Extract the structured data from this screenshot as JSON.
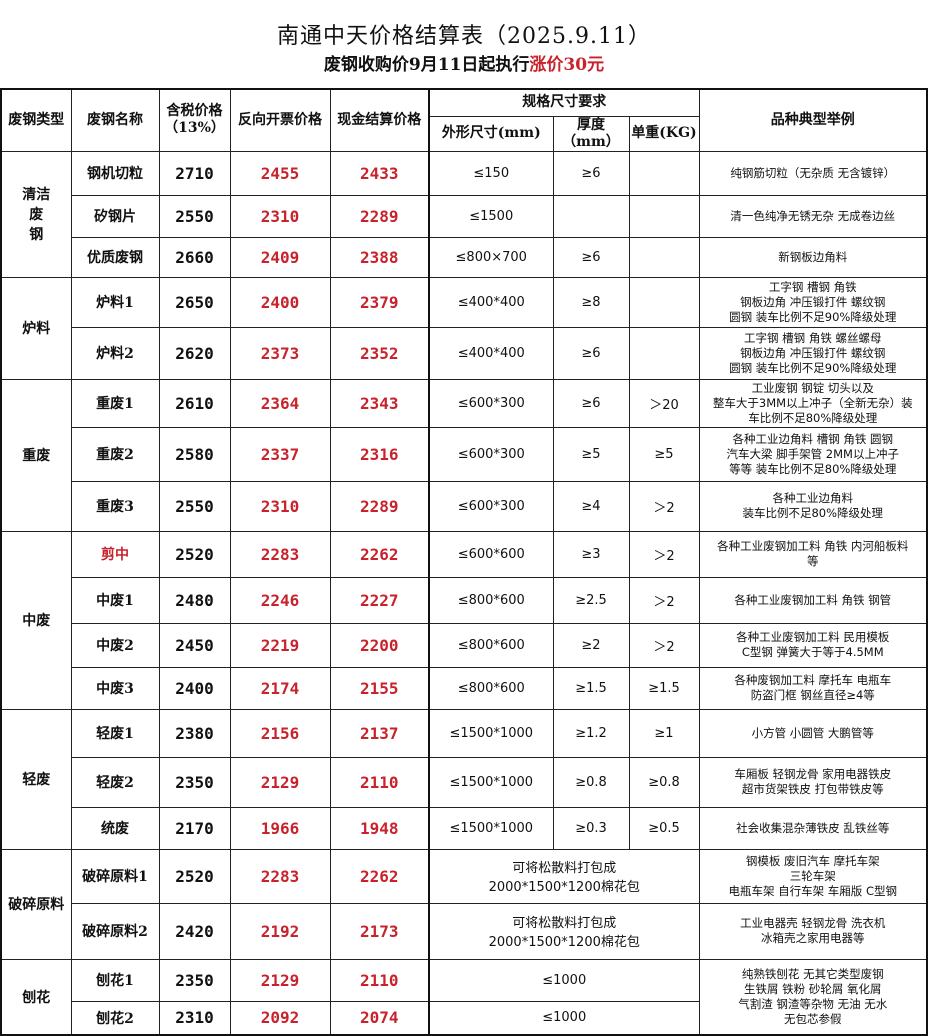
{
  "title": "南通中天价格结算表（2025.9.11）",
  "subtitle_prefix": "废钢收购价9月11日起执行",
  "subtitle_highlight": "涨价30元",
  "subtitle_suffix": "",
  "colors": {
    "accent_red": "#c8232c"
  },
  "headers": {
    "type": "废钢类型",
    "name": "废钢名称",
    "tax_price": "含税价格（13%）",
    "invoice_price": "反向开票价格",
    "cash_price": "现金结算价格",
    "spec": "规格尺寸要求",
    "size": "外形尺寸(mm)",
    "thickness": "厚度（mm）",
    "weight": "单重(KG)",
    "examples": "品种典型举例"
  },
  "groups": [
    {
      "type": "清洁废钢",
      "rows": [
        {
          "name": "钢机切粒",
          "tax": "2710",
          "invoice": "2455",
          "cash": "2433",
          "size": "≤150",
          "thick": "≥6",
          "weight": "",
          "example": "纯钢筋切粒（无杂质 无含镀锌）"
        },
        {
          "name": "矽钢片",
          "tax": "2550",
          "invoice": "2310",
          "cash": "2289",
          "size": "≤1500",
          "thick": "",
          "weight": "",
          "example": "清一色纯净无锈无杂 无成卷边丝"
        },
        {
          "name": "优质废钢",
          "tax": "2660",
          "invoice": "2409",
          "cash": "2388",
          "size": "≤800×700",
          "thick": "≥6",
          "weight": "",
          "example": "新钢板边角料"
        }
      ]
    },
    {
      "type": "炉料",
      "rows": [
        {
          "name": "炉料1",
          "tax": "2650",
          "invoice": "2400",
          "cash": "2379",
          "size": "≤400*400",
          "thick": "≥8",
          "weight": "",
          "example": "工字钢 槽钢 角铁\n钢板边角 冲压锻打件 螺纹钢\n圆钢 装车比例不足90%降级处理"
        },
        {
          "name": "炉料2",
          "tax": "2620",
          "invoice": "2373",
          "cash": "2352",
          "size": "≤400*400",
          "thick": "≥6",
          "weight": "",
          "example": "工字钢 槽钢 角铁 螺丝螺母\n钢板边角 冲压锻打件 螺纹钢\n圆钢 装车比例不足90%降级处理"
        }
      ]
    },
    {
      "type": "重废",
      "rows": [
        {
          "name": "重废1",
          "tax": "2610",
          "invoice": "2364",
          "cash": "2343",
          "size": "≤600*300",
          "thick": "≥6",
          "weight": "＞20",
          "example": "工业废钢 钢锭 切头以及\n整车大于3MM以上冲子（全新无杂）装\n车比例不足80%降级处理"
        },
        {
          "name": "重废2",
          "tax": "2580",
          "invoice": "2337",
          "cash": "2316",
          "size": "≤600*300",
          "thick": "≥5",
          "weight": "≥5",
          "example": "各种工业边角料 槽钢 角铁 圆钢\n汽车大梁 脚手架管 2MM以上冲子\n等等 装车比例不足80%降级处理"
        },
        {
          "name": "重废3",
          "tax": "2550",
          "invoice": "2310",
          "cash": "2289",
          "size": "≤600*300",
          "thick": "≥4",
          "weight": "＞2",
          "example": "各种工业边角料\n装车比例不足80%降级处理"
        }
      ]
    },
    {
      "type": "中废",
      "rows": [
        {
          "name": "剪中",
          "name_red": true,
          "tax": "2520",
          "invoice": "2283",
          "cash": "2262",
          "size": "≤600*600",
          "thick": "≥3",
          "weight": "＞2",
          "example": "各种工业废钢加工料 角铁 内河船板料\n等"
        },
        {
          "name": "中废1",
          "tax": "2480",
          "invoice": "2246",
          "cash": "2227",
          "size": "≤800*600",
          "thick": "≥2.5",
          "weight": "＞2",
          "example": "各种工业废钢加工料 角铁 钢管"
        },
        {
          "name": "中废2",
          "tax": "2450",
          "invoice": "2219",
          "cash": "2200",
          "size": "≤800*600",
          "thick": "≥2",
          "weight": "＞2",
          "example": "各种工业废钢加工料 民用模板\nC型钢 弹簧大于等于4.5MM"
        },
        {
          "name": "中废3",
          "tax": "2400",
          "invoice": "2174",
          "cash": "2155",
          "size": "≤800*600",
          "thick": "≥1.5",
          "weight": "≥1.5",
          "example": "各种废钢加工料 摩托车 电瓶车\n防盗门框 钢丝直径≥4等"
        }
      ]
    },
    {
      "type": "轻废",
      "rows": [
        {
          "name": "轻废1",
          "tax": "2380",
          "invoice": "2156",
          "cash": "2137",
          "size": "≤1500*1000",
          "thick": "≥1.2",
          "weight": "≥1",
          "example": "小方管 小圆管 大鹏管等"
        },
        {
          "name": "轻废2",
          "tax": "2350",
          "invoice": "2129",
          "cash": "2110",
          "size": "≤1500*1000",
          "thick": "≥0.8",
          "weight": "≥0.8",
          "example": "车厢板 轻钢龙骨 家用电器铁皮\n超市货架铁皮 打包带铁皮等"
        },
        {
          "name": "统废",
          "tax": "2170",
          "invoice": "1966",
          "cash": "1948",
          "size": "≤1500*1000",
          "thick": "≥0.3",
          "weight": "≥0.5",
          "example": "社会收集混杂薄铁皮 乱铁丝等"
        }
      ]
    },
    {
      "type": "破碎原料",
      "rows": [
        {
          "name": "破碎原料1",
          "tax": "2520",
          "invoice": "2283",
          "cash": "2262",
          "spec": "可将松散料打包成\n2000*1500*1200棉花包",
          "example": "钢模板 废旧汽车 摩托车架\n三轮车架\n电瓶车架 自行车架 车厢版 C型钢"
        },
        {
          "name": "破碎原料2",
          "tax": "2420",
          "invoice": "2192",
          "cash": "2173",
          "spec": "可将松散料打包成\n2000*1500*1200棉花包",
          "example": "工业电器壳 轻钢龙骨 洗衣机\n冰箱壳之家用电器等"
        }
      ]
    },
    {
      "type": "刨花",
      "rows": [
        {
          "name": "刨花1",
          "tax": "2350",
          "invoice": "2129",
          "cash": "2110",
          "spec": "≤1000",
          "example": "纯熟铁刨花 无其它类型废钢\n生铁屑 铁粉 砂轮屑 氧化屑\n气割渣 钢渣等杂物 无油 无水\n无包芯参假",
          "example_span": 2
        },
        {
          "name": "刨花2",
          "tax": "2310",
          "invoice": "2092",
          "cash": "2074",
          "spec": "≤1000"
        }
      ]
    }
  ]
}
